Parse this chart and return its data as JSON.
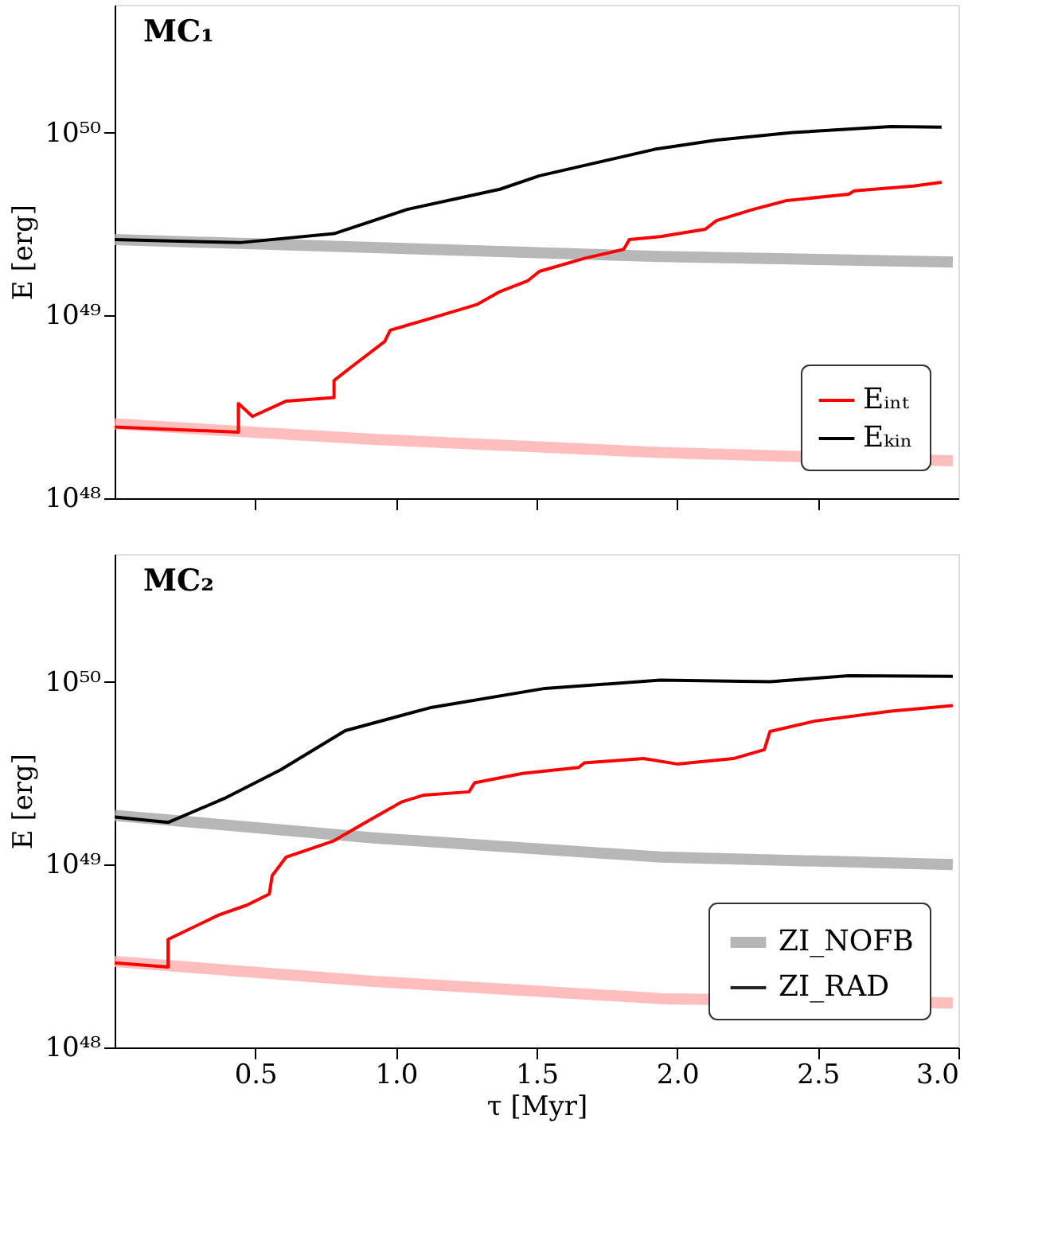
{
  "chart_data": [
    {
      "type": "line",
      "annotations": [
        "MC₁"
      ],
      "ylabel": "E [erg]",
      "log": true,
      "legend": "bottom right",
      "tick_labels": "y",
      "grid": false,
      "xlim": [
        0,
        3
      ],
      "xticks": [
        {
          "value": 0.5,
          "label": null
        },
        {
          "value": 1,
          "label": null
        },
        {
          "value": 1.5,
          "label": null
        },
        {
          "value": 2,
          "label": null
        },
        {
          "value": 2.5,
          "label": null
        }
      ],
      "ylim": [
        1e+48,
        5e+50
      ],
      "yticks": [
        {
          "value": 1e+48,
          "label": "10⁴⁸"
        },
        {
          "value": 1e+49,
          "label": "10⁴⁹"
        },
        {
          "value": 1e+50,
          "label": "10⁵⁰"
        }
      ],
      "series": [
        {
          "color": "#aaaaaa",
          "x": [
            0,
            0.92,
            1.94,
            2.98
          ],
          "values": [
            2.6e+49,
            2.35e+49,
            2.1e+49,
            1.96e+49
          ]
        },
        {
          "color": "#ffb3b3",
          "x": [
            0,
            0.92,
            1.94,
            2.98
          ],
          "values": [
            2.55e+48,
            2.1e+48,
            1.78e+48,
            1.6e+48
          ]
        },
        {
          "name": "Eᵢₙₜ",
          "color": "#ff0000",
          "x": [
            0,
            0.44,
            0.44,
            0.49,
            0.61,
            0.78,
            0.78,
            0.84,
            0.96,
            0.98,
            1.12,
            1.29,
            1.37,
            1.47,
            1.51,
            1.67,
            1.81,
            1.83,
            1.94,
            2.1,
            2.14,
            2.27,
            2.39,
            2.61,
            2.63,
            2.84,
            2.94
          ],
          "values": [
            2.45e+48,
            2.3e+48,
            3.3e+48,
            2.8e+48,
            3.4e+48,
            3.55e+48,
            4.4e+48,
            5.2e+48,
            7.2e+48,
            8.3e+48,
            9.6e+48,
            1.15e+49,
            1.35e+49,
            1.55e+49,
            1.74e+49,
            2.05e+49,
            2.3e+49,
            2.6e+49,
            2.7e+49,
            2.96e+49,
            3.3e+49,
            3.8e+49,
            4.25e+49,
            4.6e+49,
            4.8e+49,
            5.1e+49,
            5.35e+49
          ]
        },
        {
          "name": "Eₖᵢₙ",
          "color": "#000000",
          "x": [
            0,
            0.445,
            0.78,
            1.04,
            1.37,
            1.51,
            1.92,
            2.14,
            2.41,
            2.76,
            2.94
          ],
          "values": [
            2.6e+49,
            2.5e+49,
            2.8e+49,
            3.8e+49,
            4.9e+49,
            5.8e+49,
            8.1e+49,
            9.1e+49,
            1e+50,
            1.08e+50,
            1.07e+50
          ]
        }
      ]
    },
    {
      "type": "line",
      "annotations": [
        "MC₂"
      ],
      "xlabel": "τ [Myr]",
      "ylabel": "E [erg]",
      "log": true,
      "legend": "bottom right",
      "grid": false,
      "xlim": [
        0,
        3
      ],
      "xticks": [
        {
          "value": 0.5,
          "label": "0.5"
        },
        {
          "value": 1,
          "label": "1.0"
        },
        {
          "value": 1.5,
          "label": "1.5"
        },
        {
          "value": 2,
          "label": "2.0"
        },
        {
          "value": 2.5,
          "label": "2.5"
        },
        {
          "value": 3,
          "label": "3.0"
        }
      ],
      "ylim": [
        1e+48,
        5e+50
      ],
      "yticks": [
        {
          "value": 1e+48,
          "label": "10⁴⁸"
        },
        {
          "value": 1e+49,
          "label": "10⁴⁹"
        },
        {
          "value": 1e+50,
          "label": "10⁵⁰"
        }
      ],
      "series": [
        {
          "name": "ZI_NOFB",
          "color": "#aaaaaa",
          "x": [
            0,
            0.92,
            1.94,
            2.98
          ],
          "values": [
            1.86e+49,
            1.4e+49,
            1.1e+49,
            1e+49
          ]
        },
        {
          "color": "#ffb3b3",
          "x": [
            0,
            0.92,
            1.94,
            2.98
          ],
          "values": [
            2.95e+48,
            2.3e+48,
            1.85e+48,
            1.75e+48
          ]
        },
        {
          "color": "#ff0000",
          "x": [
            0,
            0.19,
            0.19,
            0.37,
            0.47,
            0.55,
            0.56,
            0.61,
            0.78,
            0.88,
            1.02,
            1.1,
            1.26,
            1.28,
            1.45,
            1.65,
            1.67,
            1.88,
            2.0,
            2.2,
            2.31,
            2.33,
            2.49,
            2.76,
            2.98
          ],
          "values": [
            2.9e+48,
            2.75e+48,
            3.9e+48,
            5.3e+48,
            6e+48,
            6.9e+48,
            8.7e+48,
            1.1e+49,
            1.35e+49,
            1.66e+49,
            2.2e+49,
            2.4e+49,
            2.5e+49,
            2.8e+49,
            3.15e+49,
            3.4e+49,
            3.6e+49,
            3.8e+49,
            3.55e+49,
            3.8e+49,
            4.25e+49,
            5.35e+49,
            6.1e+49,
            6.9e+49,
            7.4e+49
          ]
        },
        {
          "name": "ZI_RAD",
          "color": "#000000",
          "x": [
            0,
            0.19,
            0.39,
            0.59,
            0.82,
            1.12,
            1.53,
            1.94,
            2.33,
            2.61,
            2.98
          ],
          "values": [
            1.82e+49,
            1.7e+49,
            2.3e+49,
            3.3e+49,
            5.4e+49,
            7.2e+49,
            9.2e+49,
            1.02e+50,
            1e+50,
            1.08e+50,
            1.07e+50
          ]
        }
      ]
    }
  ]
}
